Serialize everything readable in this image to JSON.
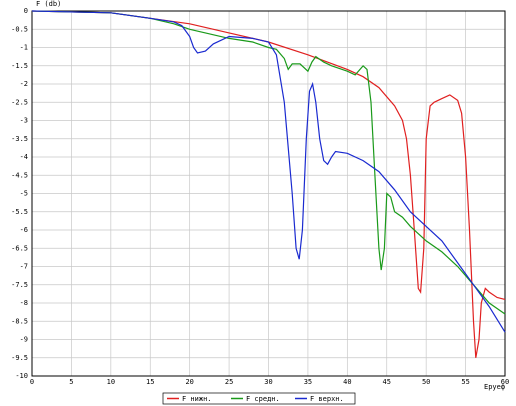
{
  "chart_data": {
    "type": "line",
    "y_label": "F (db)",
    "x_label": "Eруеф",
    "xlim": [
      0,
      60
    ],
    "ylim": [
      -10,
      0
    ],
    "xticks": [
      0,
      5,
      10,
      15,
      20,
      25,
      30,
      35,
      40,
      45,
      50,
      55,
      60
    ],
    "yticks": [
      0,
      -0.5,
      -1,
      -1.5,
      -2,
      -2.5,
      -3,
      -3.5,
      -4,
      -4.5,
      -5,
      -5.5,
      -6,
      -6.5,
      -7,
      -7.5,
      -8,
      -8.5,
      -9,
      -9.5,
      -10
    ],
    "grid": true,
    "legend": "bottom",
    "series": [
      {
        "name": "F нижн.",
        "color": "#e02020",
        "x": [
          0,
          10,
          15,
          20,
          25,
          30,
          35,
          40,
          42,
          44,
          46,
          47,
          47.5,
          48,
          48.5,
          49,
          49.3,
          49.7,
          50,
          50.5,
          51,
          52,
          53,
          54,
          54.5,
          55,
          55.5,
          56,
          56.3,
          56.7,
          57,
          57.5,
          58,
          59,
          60
        ],
        "values": [
          0,
          -0.05,
          -0.2,
          -0.35,
          -0.6,
          -0.85,
          -1.2,
          -1.6,
          -1.8,
          -2.1,
          -2.6,
          -3,
          -3.5,
          -4.5,
          -6,
          -7.6,
          -7.7,
          -6.5,
          -3.5,
          -2.6,
          -2.5,
          -2.4,
          -2.3,
          -2.45,
          -2.8,
          -4,
          -6,
          -8.5,
          -9.5,
          -9,
          -8,
          -7.6,
          -7.7,
          -7.85,
          -7.9
        ]
      },
      {
        "name": "F средн.",
        "color": "#1a9a1a",
        "x": [
          0,
          10,
          15,
          18,
          20,
          22,
          25,
          28,
          30,
          31,
          32,
          32.5,
          33,
          34,
          35,
          35.5,
          36,
          37,
          38,
          40,
          41,
          42,
          42.5,
          43,
          43.5,
          44,
          44.3,
          44.7,
          45,
          45.5,
          46,
          47,
          48,
          50,
          52,
          54,
          56,
          58,
          60
        ],
        "values": [
          0,
          -0.05,
          -0.2,
          -0.35,
          -0.5,
          -0.6,
          -0.75,
          -0.85,
          -1,
          -1.05,
          -1.3,
          -1.6,
          -1.45,
          -1.45,
          -1.65,
          -1.4,
          -1.25,
          -1.4,
          -1.5,
          -1.65,
          -1.75,
          -1.5,
          -1.6,
          -2.5,
          -4.5,
          -6.5,
          -7.1,
          -6.5,
          -5,
          -5.1,
          -5.5,
          -5.65,
          -5.9,
          -6.3,
          -6.6,
          -7,
          -7.5,
          -8,
          -8.3
        ]
      },
      {
        "name": "F верхн.",
        "color": "#1a2ad0",
        "x": [
          0,
          10,
          15,
          18,
          19,
          20,
          20.5,
          21,
          22,
          23,
          24,
          25,
          28,
          30,
          31,
          32,
          33,
          33.5,
          33.9,
          34.3,
          34.8,
          35.2,
          35.6,
          36,
          36.5,
          37,
          37.5,
          38,
          38.5,
          40,
          42,
          44,
          46,
          48,
          50,
          52,
          54,
          56,
          58,
          60
        ],
        "values": [
          0,
          -0.05,
          -0.2,
          -0.3,
          -0.4,
          -0.7,
          -1,
          -1.15,
          -1.1,
          -0.9,
          -0.8,
          -0.7,
          -0.75,
          -0.85,
          -1.2,
          -2.5,
          -5,
          -6.5,
          -6.8,
          -6,
          -3.5,
          -2.2,
          -2,
          -2.5,
          -3.5,
          -4.1,
          -4.2,
          -4,
          -3.85,
          -3.9,
          -4.1,
          -4.4,
          -4.9,
          -5.5,
          -5.9,
          -6.3,
          -6.9,
          -7.5,
          -8.1,
          -8.8
        ]
      }
    ]
  }
}
